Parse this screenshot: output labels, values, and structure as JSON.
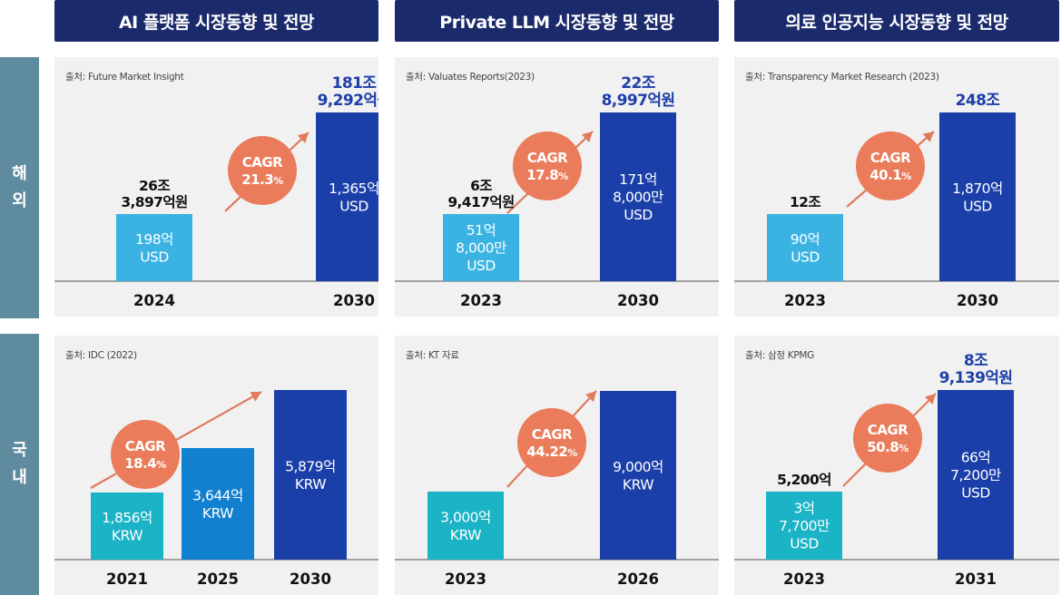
{
  "headers": [
    {
      "label": "AI 플랫폼 시장동향 및 전망"
    },
    {
      "label": "Private LLM 시장동향 및 전망"
    },
    {
      "label": "의료 인공지능 시장동향 및 전망"
    }
  ],
  "rows": [
    {
      "label_chars": [
        "해",
        "외"
      ]
    },
    {
      "label_chars": [
        "국",
        "내"
      ]
    }
  ],
  "colors": {
    "header_bg": "#1b2a6b",
    "row_label_bg": "#5f8b9e",
    "panel_bg": "#f1f1f1",
    "bar_light_blue": "#3ab3e3",
    "bar_teal": "#1bb3c6",
    "bar_mid_blue": "#1180cf",
    "bar_dark_blue": "#1b3fa8",
    "cagr_circle": "#ea7b5b",
    "arrow": "#e07a5b",
    "total_highlight": "#1d3fa8"
  },
  "chart_data": [
    {
      "type": "bar",
      "section": "해외",
      "title": "AI 플랫폼 시장동향 및 전망",
      "source": "출처: Future Market Insight",
      "categories": [
        "2024",
        "2030"
      ],
      "values": [
        198,
        1365
      ],
      "unit": "억 USD",
      "bar_labels": [
        [
          "198억",
          "USD"
        ],
        [
          "1,365억",
          "USD"
        ]
      ],
      "totals": [
        [
          "26조",
          "3,897억원"
        ],
        [
          "181조",
          "9,292억원"
        ]
      ],
      "cagr": {
        "label": "CAGR",
        "value": "21.3",
        "unit": "%"
      }
    },
    {
      "type": "bar",
      "section": "해외",
      "title": "Private LLM 시장동향 및 전망",
      "source": "출처: Valuates Reports(2023)",
      "categories": [
        "2023",
        "2030"
      ],
      "values": [
        51.8,
        171.8
      ],
      "unit": "억 USD",
      "bar_labels": [
        [
          "51억",
          "8,000만",
          "USD"
        ],
        [
          "171억",
          "8,000만",
          "USD"
        ]
      ],
      "totals": [
        [
          "6조",
          "9,417억원"
        ],
        [
          "22조",
          "8,997억원"
        ]
      ],
      "cagr": {
        "label": "CAGR",
        "value": "17.8",
        "unit": "%"
      }
    },
    {
      "type": "bar",
      "section": "해외",
      "title": "의료 인공지능 시장동향 및 전망",
      "source": "출처: Transparency Market Research (2023)",
      "categories": [
        "2023",
        "2030"
      ],
      "values": [
        90,
        1870
      ],
      "unit": "억 USD",
      "bar_labels": [
        [
          "90억",
          "USD"
        ],
        [
          "1,870억",
          "USD"
        ]
      ],
      "totals": [
        [
          "12조"
        ],
        [
          "248조"
        ]
      ],
      "cagr": {
        "label": "CAGR",
        "value": "40.1",
        "unit": "%"
      }
    },
    {
      "type": "bar",
      "section": "국내",
      "title": "AI 플랫폼 시장동향 및 전망",
      "source": "출처: IDC (2022)",
      "categories": [
        "2021",
        "2025",
        "2030"
      ],
      "values": [
        1856,
        3644,
        5879
      ],
      "unit": "억 KRW",
      "bar_labels": [
        [
          "1,856억",
          "KRW"
        ],
        [
          "3,644억",
          "KRW"
        ],
        [
          "5,879억",
          "KRW"
        ]
      ],
      "totals": [
        [],
        [],
        []
      ],
      "cagr": {
        "label": "CAGR",
        "value": "18.4",
        "unit": "%"
      }
    },
    {
      "type": "bar",
      "section": "국내",
      "title": "Private LLM 시장동향 및 전망",
      "source": "출처: KT 자료",
      "categories": [
        "2023",
        "2026"
      ],
      "values": [
        3000,
        9000
      ],
      "unit": "억 KRW",
      "bar_labels": [
        [
          "3,000억",
          "KRW"
        ],
        [
          "9,000억",
          "KRW"
        ]
      ],
      "totals": [
        [],
        []
      ],
      "cagr": {
        "label": "CAGR",
        "value": "44.22",
        "unit": "%"
      }
    },
    {
      "type": "bar",
      "section": "국내",
      "title": "의료 인공지능 시장동향 및 전망",
      "source": "출처: 삼정 KPMG",
      "categories": [
        "2023",
        "2031"
      ],
      "values": [
        3.77,
        66.72
      ],
      "unit": "억 USD",
      "bar_labels": [
        [
          "3억",
          "7,700만",
          "USD"
        ],
        [
          "66억",
          "7,200만",
          "USD"
        ]
      ],
      "totals": [
        [
          "5,200억"
        ],
        [
          "8조",
          "9,139억원"
        ]
      ],
      "cagr": {
        "label": "CAGR",
        "value": "50.8",
        "unit": "%"
      }
    }
  ]
}
